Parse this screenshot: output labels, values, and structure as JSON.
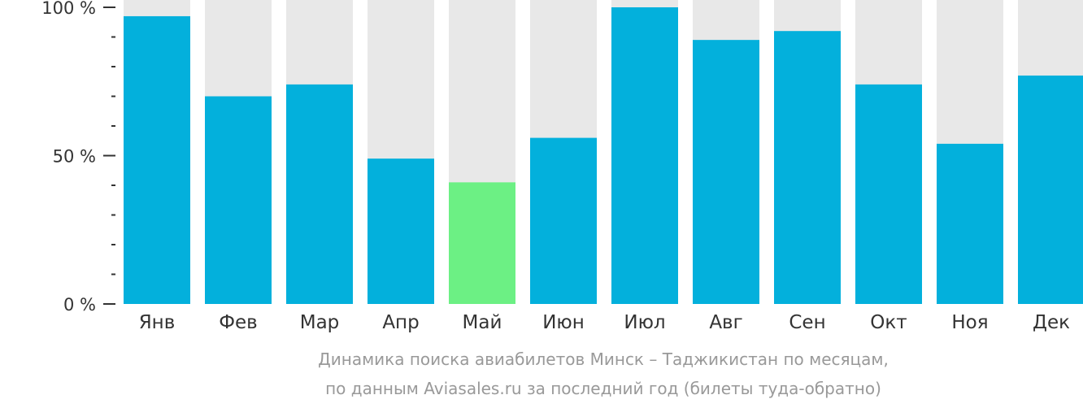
{
  "chart_data": {
    "type": "bar",
    "categories": [
      "Янв",
      "Фев",
      "Мар",
      "Апр",
      "Май",
      "Июн",
      "Июл",
      "Авг",
      "Сен",
      "Окт",
      "Ноя",
      "Дек"
    ],
    "values": [
      97,
      70,
      74,
      49,
      41,
      56,
      100,
      89,
      92,
      74,
      54,
      77
    ],
    "ylim": [
      0,
      100
    ],
    "yticks": [
      {
        "value": 0,
        "label": "0 %"
      },
      {
        "value": 50,
        "label": "50 %"
      },
      {
        "value": 100,
        "label": "100 %"
      }
    ],
    "highlight_index": 4,
    "colors": {
      "bar": "#03b0dc",
      "highlight": "#6cf084",
      "background": "#e8e8e8",
      "axis": "#333333"
    }
  },
  "caption": {
    "line1": "Динамика поиска авиабилетов Минск – Таджикистан по месяцам,",
    "line2": "по данным Aviasales.ru за последний год (билеты туда-обратно)"
  }
}
